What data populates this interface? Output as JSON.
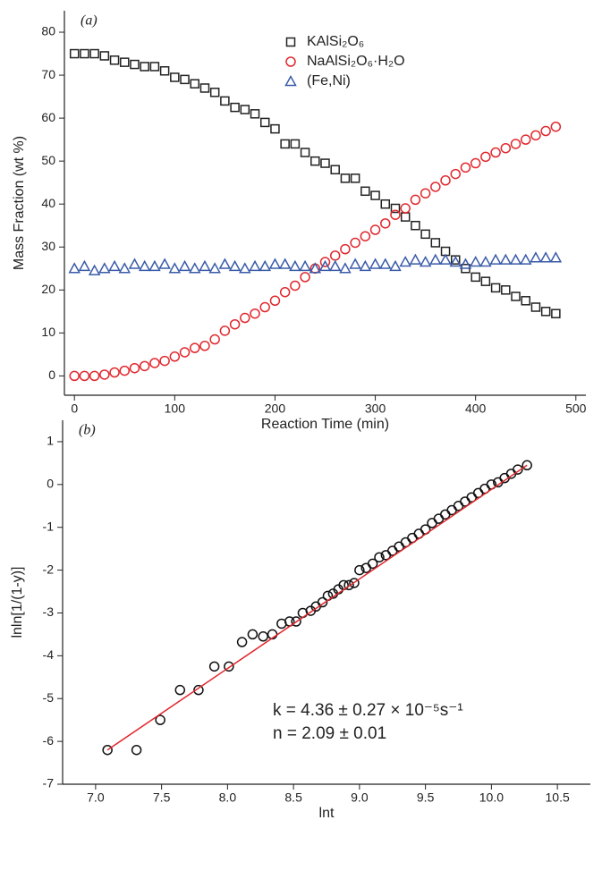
{
  "chart_data": [
    {
      "type": "scatter",
      "panel_label": "(a)",
      "x_label": "Reaction Time (min)",
      "y_label": "Mass Fraction (wt %)",
      "xlim": [
        -10,
        510
      ],
      "xticks": [
        0,
        100,
        200,
        300,
        400,
        500
      ],
      "ylim": [
        -4.5,
        85
      ],
      "yticks": [
        0,
        10,
        20,
        30,
        40,
        50,
        60,
        70,
        80
      ],
      "legend": "upper right",
      "x": [
        0,
        10,
        20,
        30,
        40,
        50,
        60,
        70,
        80,
        90,
        100,
        110,
        120,
        130,
        140,
        150,
        160,
        170,
        180,
        190,
        200,
        210,
        220,
        230,
        240,
        250,
        260,
        270,
        280,
        290,
        300,
        310,
        320,
        330,
        340,
        350,
        360,
        370,
        380,
        390,
        400,
        410,
        420,
        430,
        440,
        450,
        460,
        470,
        480
      ],
      "series": [
        {
          "name": "KAlSi₂O₆",
          "color": "#222222",
          "marker": "square",
          "values": [
            75,
            75,
            75,
            74.5,
            73.5,
            73,
            72.5,
            72,
            72,
            71,
            69.5,
            69,
            68,
            67,
            66,
            64,
            62.5,
            62,
            61,
            59,
            57.5,
            54,
            54,
            52,
            50,
            49.5,
            48,
            46,
            46,
            43,
            42,
            40,
            39,
            37,
            35,
            33,
            31,
            29,
            27,
            25,
            23,
            22,
            20.5,
            20,
            18.5,
            17.5,
            16,
            15,
            14.5
          ]
        },
        {
          "name": "NaAlSi₂O₆·H₂O",
          "color": "#e0282e",
          "marker": "circle",
          "values": [
            0,
            0,
            0,
            0.3,
            0.8,
            1.2,
            1.8,
            2.3,
            3,
            3.5,
            4.5,
            5.5,
            6.5,
            7,
            8.5,
            10.5,
            12,
            13.5,
            14.5,
            16,
            17.5,
            19.5,
            21,
            23,
            25,
            26.5,
            28,
            29.5,
            31,
            32.5,
            34,
            35.5,
            37.5,
            39,
            41,
            42.5,
            44,
            45.5,
            47,
            48.5,
            49.5,
            51,
            52,
            53,
            54,
            55,
            56,
            57,
            58
          ]
        },
        {
          "name": "(Fe,Ni)",
          "color": "#3a5ba8",
          "marker": "triangle",
          "values": [
            25,
            25.5,
            24.5,
            25,
            25.5,
            25,
            26,
            25.5,
            25.5,
            26,
            25,
            25.5,
            25,
            25.5,
            25,
            26,
            25.5,
            25,
            25.5,
            25.5,
            26,
            26,
            25.5,
            25.5,
            25,
            25.5,
            25.5,
            25,
            26,
            25.5,
            26,
            26,
            25.5,
            26.5,
            27,
            26.5,
            27,
            27,
            26.5,
            26,
            26.5,
            26.5,
            27,
            27,
            27,
            27,
            27.5,
            27.5,
            27.5
          ]
        }
      ]
    },
    {
      "type": "scatter",
      "panel_label": "(b)",
      "x_label": "lnt",
      "y_label": "lnln[1/(1-y)]",
      "xlim": [
        6.75,
        10.75
      ],
      "xticks": [
        {
          "value": 7,
          "label": "7.0"
        },
        7.5,
        {
          "value": 8,
          "label": "8.0"
        },
        8.5,
        {
          "value": 9,
          "label": "9.0"
        },
        9.5,
        {
          "value": 10,
          "label": "10.0"
        },
        10.5
      ],
      "ylim": [
        -7,
        1.5
      ],
      "yticks": [
        -7,
        -6,
        -5,
        -4,
        -3,
        -2,
        -1,
        0,
        1
      ],
      "annotations": [
        "k = 4.36 ± 0.27 × 10⁻⁵s⁻¹",
        "n = 2.09 ± 0.01"
      ],
      "series": [
        {
          "color": "#111111",
          "marker": "circle",
          "x": [
            7.09,
            7.31,
            7.49,
            7.64,
            7.78,
            7.9,
            8.01,
            8.11,
            8.19,
            8.27,
            8.34,
            8.41,
            8.47,
            8.52,
            8.57,
            8.63,
            8.67,
            8.72,
            8.76,
            8.8,
            8.84,
            8.88,
            8.92,
            8.96,
            9,
            9.05,
            9.1,
            9.15,
            9.2,
            9.25,
            9.3,
            9.35,
            9.4,
            9.45,
            9.5,
            9.55,
            9.6,
            9.65,
            9.7,
            9.75,
            9.8,
            9.85,
            9.9,
            9.95,
            10,
            10.05,
            10.1,
            10.15,
            10.2,
            10.27
          ],
          "values": [
            -6.2,
            -6.2,
            -5.5,
            -4.8,
            -4.8,
            -4.25,
            -4.25,
            -3.68,
            -3.5,
            -3.55,
            -3.5,
            -3.25,
            -3.2,
            -3.2,
            -3,
            -2.95,
            -2.85,
            -2.75,
            -2.6,
            -2.55,
            -2.45,
            -2.35,
            -2.35,
            -2.3,
            -2,
            -1.95,
            -1.85,
            -1.7,
            -1.65,
            -1.55,
            -1.45,
            -1.35,
            -1.25,
            -1.15,
            -1.05,
            -0.9,
            -0.8,
            -0.7,
            -0.6,
            -0.5,
            -0.4,
            -0.3,
            -0.2,
            -0.1,
            0,
            0.05,
            0.15,
            0.25,
            0.35,
            0.45
          ]
        },
        {
          "color": "#e0282e",
          "style": "line",
          "x": [
            7.09,
            10.27
          ],
          "values": [
            -6.2,
            0.45
          ]
        }
      ]
    }
  ]
}
